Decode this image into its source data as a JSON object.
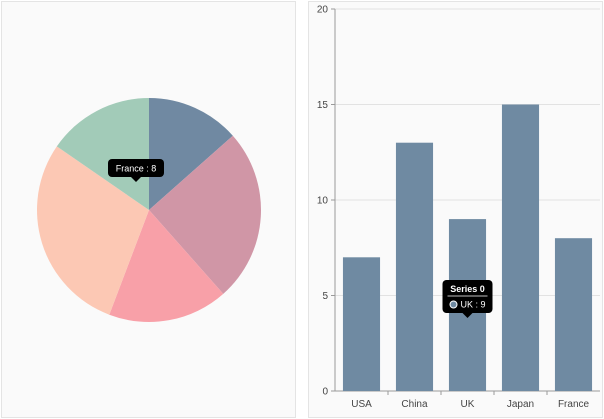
{
  "chart_data": [
    {
      "type": "pie",
      "categories": [
        "USA",
        "China",
        "UK",
        "Japan",
        "France"
      ],
      "values": [
        7,
        13,
        9,
        15,
        8
      ],
      "colors": [
        "#7089a2",
        "#d096a6",
        "#f8a0a8",
        "#fcc8b4",
        "#a2cbb8"
      ],
      "tooltip": {
        "category": "France",
        "value": "8",
        "text": "France : 8"
      }
    },
    {
      "type": "bar",
      "categories": [
        "USA",
        "China",
        "UK",
        "Japan",
        "France"
      ],
      "series": [
        {
          "name": "Series 0",
          "values": [
            7,
            13,
            9,
            15,
            8
          ],
          "color": "#6f8aa2"
        }
      ],
      "ylim": [
        0,
        20
      ],
      "yticks": [
        0,
        5,
        10,
        15,
        20
      ],
      "grid": true,
      "tooltip": {
        "title": "Series 0",
        "text": "UK : 9",
        "category": "UK",
        "value": 9
      }
    }
  ]
}
